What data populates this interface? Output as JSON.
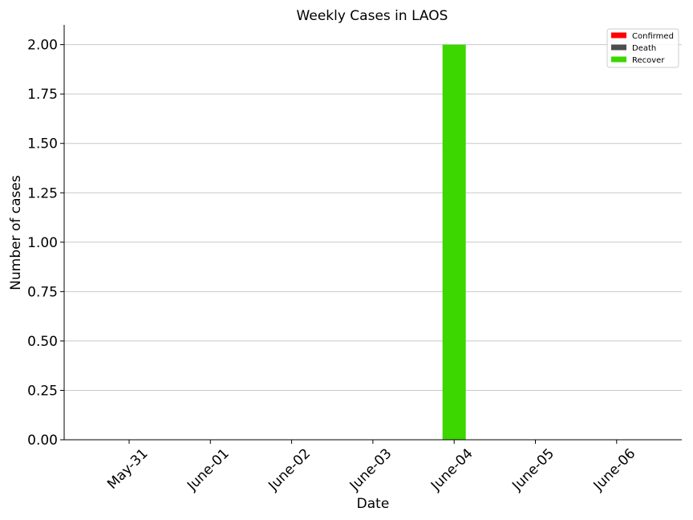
{
  "chart_data": {
    "type": "bar",
    "title": "Weekly Cases in LAOS",
    "xlabel": "Date",
    "ylabel": "Number of cases",
    "categories": [
      "May-31",
      "June-01",
      "June-02",
      "June-03",
      "June-04",
      "June-05",
      "June-06"
    ],
    "series": [
      {
        "name": "Confirmed",
        "color": "#ff0000",
        "values": [
          0,
          0,
          0,
          0,
          0,
          0,
          0
        ]
      },
      {
        "name": "Death",
        "color": "#4d4d4d",
        "values": [
          0,
          0,
          0,
          0,
          0,
          0,
          0
        ]
      },
      {
        "name": "Recover",
        "color": "#3cd600",
        "values": [
          0,
          0,
          0,
          0,
          2,
          0,
          0
        ]
      }
    ],
    "ylim": [
      0,
      2.1
    ],
    "yticks": [
      "0.00",
      "0.25",
      "0.50",
      "0.75",
      "1.00",
      "1.25",
      "1.50",
      "1.75",
      "2.00"
    ],
    "grid": "horizontal",
    "legend_position": "top-right"
  }
}
